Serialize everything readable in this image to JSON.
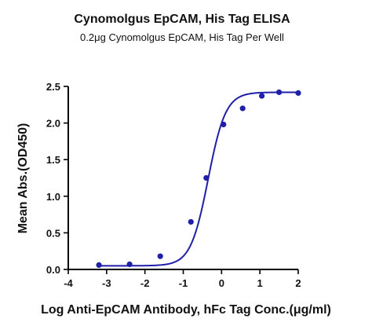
{
  "chart_data": {
    "type": "scatter",
    "title": "Cynomolgus EpCAM, His Tag ELISA",
    "subtitle": "0.2μg Cynomolgus EpCAM, His Tag Per Well",
    "xlabel": "Log Anti-EpCAM Antibody, hFc Tag Conc.(μg/ml)",
    "ylabel": "Mean Abs.(OD450)",
    "xlim": [
      -4,
      2
    ],
    "ylim": [
      0,
      2.5
    ],
    "x_ticks": [
      -4,
      -3,
      -2,
      -1,
      0,
      1,
      2
    ],
    "x_tick_labels": [
      "-4",
      "-3",
      "-2",
      "-1",
      "0",
      "1",
      "2"
    ],
    "y_ticks": [
      0,
      0.5,
      1.0,
      1.5,
      2.0,
      2.5
    ],
    "y_tick_labels": [
      "0.0",
      "0.5",
      "1.0",
      "1.5",
      "2.0",
      "2.5"
    ],
    "grid": false,
    "legend": "none",
    "series": [
      {
        "x": [
          -3.2,
          -2.4,
          -1.6,
          -0.8,
          -0.4,
          0.05,
          0.55,
          1.05,
          1.5,
          2.0
        ],
        "y": [
          0.06,
          0.07,
          0.18,
          0.65,
          1.25,
          1.98,
          2.2,
          2.37,
          2.42,
          2.41
        ],
        "color": "#1f1fa8",
        "fit": {
          "model": "4PL",
          "bottom": 0.05,
          "top": 2.42,
          "logEC50": -0.35,
          "hill": 1.9
        }
      }
    ]
  }
}
